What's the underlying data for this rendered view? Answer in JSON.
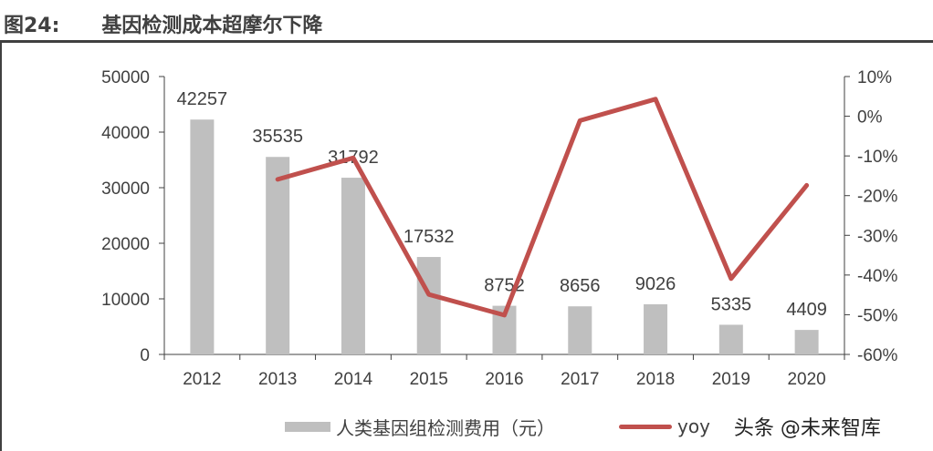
{
  "title": "图24:      基因检测成本超摩尔下降",
  "watermark": "头条 @未来智库",
  "chart_data": {
    "type": "bar+line",
    "categories": [
      "2012",
      "2013",
      "2014",
      "2015",
      "2016",
      "2017",
      "2018",
      "2019",
      "2020"
    ],
    "series": [
      {
        "name": "人类基因组检测费用（元）",
        "type": "bar",
        "axis": "left",
        "color": "#bfbfbf",
        "values": [
          42257,
          35535,
          31792,
          17532,
          8752,
          8656,
          9026,
          5335,
          4409
        ],
        "labels": [
          "42257",
          "35535",
          "31792",
          "17532",
          "8752",
          "8656",
          "9026",
          "5335",
          "4409"
        ]
      },
      {
        "name": "yoy",
        "type": "line",
        "axis": "right",
        "color": "#c0504d",
        "values": [
          null,
          -15.9,
          -10.5,
          -44.9,
          -50.1,
          -1.1,
          4.3,
          -40.9,
          -17.4
        ]
      }
    ],
    "left_axis": {
      "ylim": [
        0,
        50000
      ],
      "ticks": [
        "0",
        "10000",
        "20000",
        "30000",
        "40000",
        "50000"
      ]
    },
    "right_axis": {
      "ylim": [
        -60,
        10
      ],
      "ticks": [
        "-60%",
        "-50%",
        "-40%",
        "-30%",
        "-20%",
        "-10%",
        "0%",
        "10%"
      ]
    },
    "grid": false,
    "legend": "bottom"
  }
}
